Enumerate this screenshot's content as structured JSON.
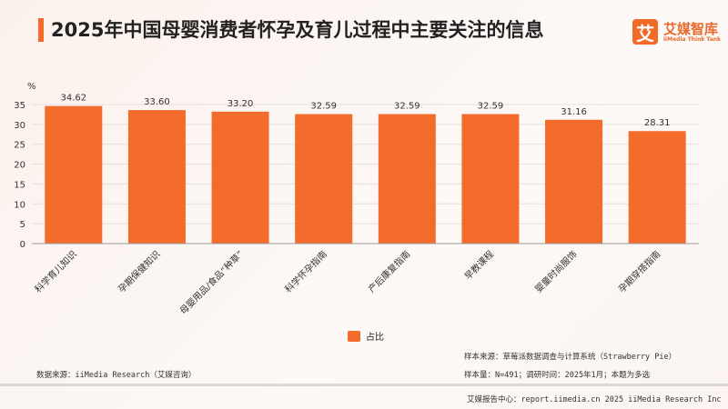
{
  "title": "2025年中国母婴消费者怀孕及育儿过程中主要关注的信息",
  "logo": {
    "mark": "艾",
    "cn": "艾媒智库",
    "en": "iiMedia Think Tank"
  },
  "chart_data": {
    "type": "bar",
    "title": "2025年中国母婴消费者怀孕及育儿过程中主要关注的信息",
    "ylabel": "%",
    "ylim": [
      0,
      35
    ],
    "yticks": [
      0,
      5,
      10,
      15,
      20,
      25,
      30,
      35
    ],
    "grid": true,
    "categories": [
      "科学育儿知识",
      "孕期保健知识",
      "母婴用品/食品“种草”",
      "科学怀孕指南",
      "产后康复指南",
      "早教课程",
      "婴童时尚服饰",
      "孕期穿搭指南"
    ],
    "series": [
      {
        "name": "占比",
        "values": [
          34.62,
          33.6,
          33.2,
          32.59,
          32.59,
          32.59,
          31.16,
          28.31
        ]
      }
    ],
    "legend": "bottom-center",
    "color": "#f36c2b"
  },
  "notes": {
    "sample_source": "样本来源：草莓派数据调查与计算系统（Strawberry Pie）",
    "sample_size": "样本量：N=491；调研时间：2025年1月；本题为多选",
    "data_source": "数据来源：iiMedia Research（艾媒咨询）",
    "footer": "艾媒报告中心：report.iimedia.cn   2025 iiMedia Research Inc"
  }
}
